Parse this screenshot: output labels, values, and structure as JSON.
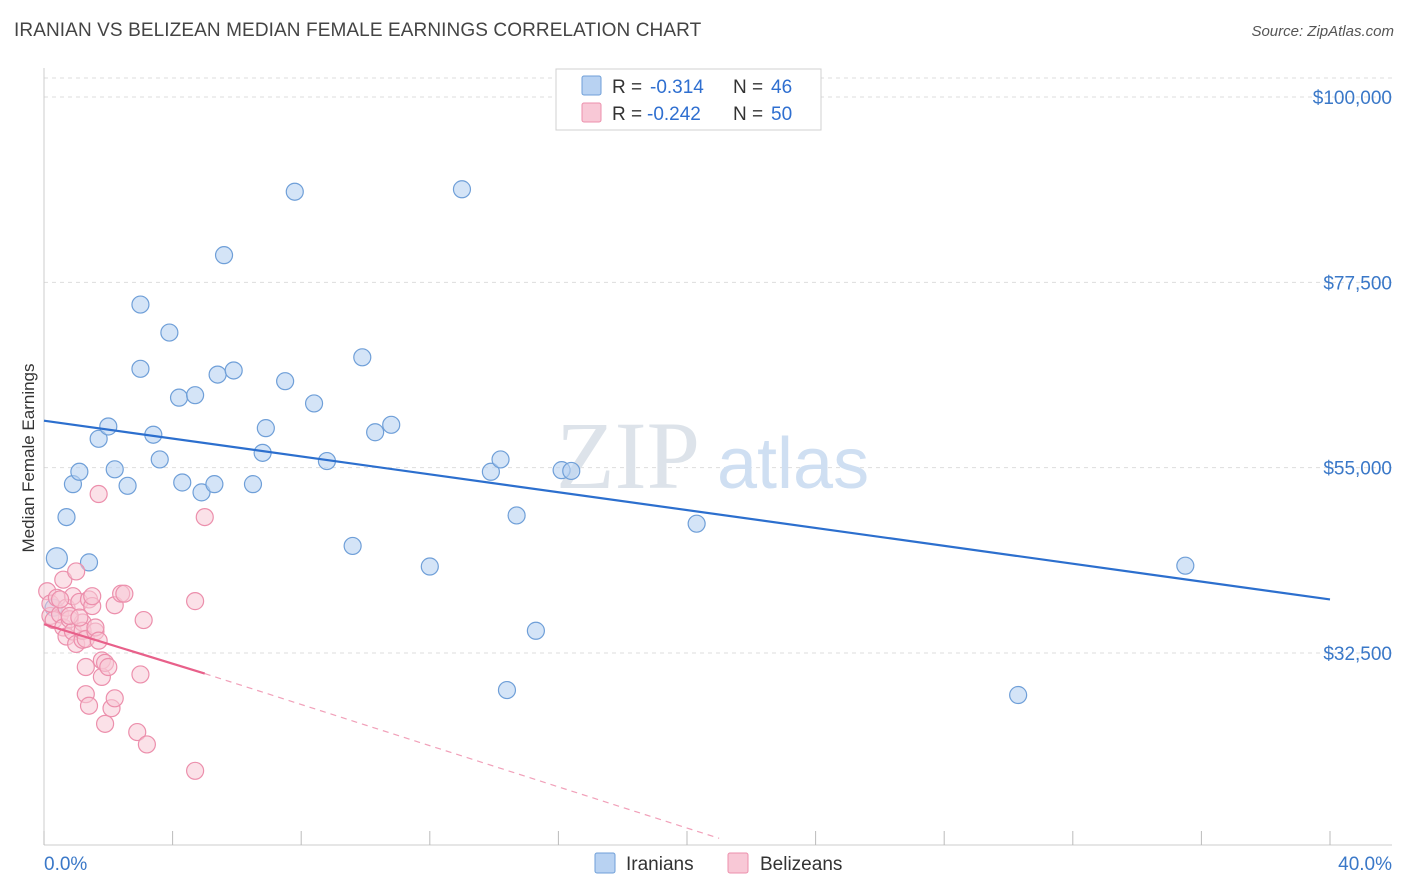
{
  "title": "IRANIAN VS BELIZEAN MEDIAN FEMALE EARNINGS CORRELATION CHART",
  "source": "Source: ZipAtlas.com",
  "watermark": {
    "zip": "ZIP",
    "atlas": "atlas"
  },
  "colors": {
    "iranians_fill": "#b8d2f2",
    "iranians_stroke": "#6f9fd8",
    "iranians_line": "#2c6fce",
    "belizeans_fill": "#f8c8d6",
    "belizeans_stroke": "#ec8fac",
    "belizeans_line": "#e8608a",
    "axis_text": "#3a78c8",
    "grid": "#dddddd"
  },
  "legend": {
    "iranians": {
      "r_label": "R =",
      "r_value": "-0.314",
      "n_label": "N =",
      "n_value": "46"
    },
    "belizeans": {
      "r_label": "R =",
      "r_value": "-0.242",
      "n_label": "N =",
      "n_value": "50"
    }
  },
  "bottom_legend": {
    "iranians": "Iranians",
    "belizeans": "Belizeans"
  },
  "chart_data": {
    "type": "scatter",
    "title": "IRANIAN VS BELIZEAN MEDIAN FEMALE EARNINGS CORRELATION CHART",
    "xlabel": "",
    "ylabel": "Median Female Earnings",
    "xlim": [
      0,
      40
    ],
    "ylim": [
      10000,
      102000
    ],
    "x_tick_labels": {
      "left": "0.0%",
      "right": "40.0%"
    },
    "y_ticks": [
      {
        "value": 100000,
        "label": "$100,000"
      },
      {
        "value": 77500,
        "label": "$77,500"
      },
      {
        "value": 55000,
        "label": "$55,000"
      },
      {
        "value": 32500,
        "label": "$32,500"
      }
    ],
    "series": [
      {
        "name": "Iranians",
        "r": -0.314,
        "n": 46,
        "trend": {
          "x": [
            0.0,
            40.0
          ],
          "y": [
            60700,
            39000
          ],
          "dashed_extension": false
        },
        "points": [
          [
            0.4,
            44000
          ],
          [
            0.7,
            49000
          ],
          [
            0.9,
            53000
          ],
          [
            1.1,
            54500
          ],
          [
            1.4,
            43500
          ],
          [
            1.7,
            58500
          ],
          [
            2.0,
            60000
          ],
          [
            2.2,
            54800
          ],
          [
            2.6,
            52800
          ],
          [
            3.0,
            67000
          ],
          [
            3.0,
            74800
          ],
          [
            3.4,
            59000
          ],
          [
            3.6,
            56000
          ],
          [
            3.9,
            71400
          ],
          [
            4.2,
            63500
          ],
          [
            4.3,
            53200
          ],
          [
            4.7,
            63800
          ],
          [
            4.9,
            52000
          ],
          [
            5.3,
            53000
          ],
          [
            5.4,
            66300
          ],
          [
            5.6,
            80800
          ],
          [
            5.9,
            66800
          ],
          [
            6.5,
            53000
          ],
          [
            6.8,
            56800
          ],
          [
            6.9,
            59800
          ],
          [
            7.5,
            65500
          ],
          [
            7.8,
            88500
          ],
          [
            8.4,
            62800
          ],
          [
            8.8,
            55800
          ],
          [
            9.6,
            45500
          ],
          [
            9.9,
            68400
          ],
          [
            10.3,
            59300
          ],
          [
            10.8,
            60200
          ],
          [
            12.0,
            43000
          ],
          [
            13.0,
            88800
          ],
          [
            13.9,
            54500
          ],
          [
            14.2,
            56000
          ],
          [
            14.4,
            28000
          ],
          [
            14.7,
            49200
          ],
          [
            15.3,
            35200
          ],
          [
            16.1,
            54700
          ],
          [
            16.4,
            54600
          ],
          [
            20.3,
            48200
          ],
          [
            30.3,
            27400
          ],
          [
            35.5,
            43100
          ],
          [
            0.3,
            38000
          ]
        ]
      },
      {
        "name": "Belizeans",
        "r": -0.242,
        "n": 50,
        "trend": {
          "x": [
            0.0,
            5.0
          ],
          "y": [
            36000,
            30000
          ],
          "dashed_extension": true,
          "dashed_to": {
            "x": 21.0,
            "y": 10000
          }
        },
        "points": [
          [
            0.1,
            40000
          ],
          [
            0.2,
            37000
          ],
          [
            0.2,
            38500
          ],
          [
            0.3,
            36500
          ],
          [
            0.4,
            39200
          ],
          [
            0.5,
            37200
          ],
          [
            0.6,
            35600
          ],
          [
            0.6,
            41400
          ],
          [
            0.7,
            38000
          ],
          [
            0.7,
            34500
          ],
          [
            0.8,
            36600
          ],
          [
            0.9,
            35100
          ],
          [
            0.9,
            39400
          ],
          [
            1.0,
            42400
          ],
          [
            1.0,
            33600
          ],
          [
            1.1,
            38700
          ],
          [
            1.2,
            34100
          ],
          [
            1.2,
            36200
          ],
          [
            1.2,
            35200
          ],
          [
            1.3,
            34200
          ],
          [
            1.3,
            30800
          ],
          [
            1.3,
            27500
          ],
          [
            1.4,
            26100
          ],
          [
            1.4,
            39000
          ],
          [
            1.5,
            38200
          ],
          [
            1.5,
            39400
          ],
          [
            1.6,
            35100
          ],
          [
            1.6,
            35600
          ],
          [
            1.7,
            51800
          ],
          [
            1.7,
            34000
          ],
          [
            1.8,
            29600
          ],
          [
            1.8,
            31600
          ],
          [
            1.9,
            23900
          ],
          [
            1.9,
            31300
          ],
          [
            2.0,
            30800
          ],
          [
            2.1,
            25800
          ],
          [
            2.2,
            27000
          ],
          [
            2.2,
            38300
          ],
          [
            2.4,
            39700
          ],
          [
            2.5,
            39700
          ],
          [
            2.9,
            22900
          ],
          [
            3.0,
            29900
          ],
          [
            3.1,
            36500
          ],
          [
            3.2,
            21400
          ],
          [
            4.7,
            18200
          ],
          [
            4.7,
            38800
          ],
          [
            5.0,
            49000
          ],
          [
            0.5,
            39000
          ],
          [
            0.8,
            37000
          ],
          [
            1.1,
            36800
          ]
        ]
      }
    ]
  }
}
